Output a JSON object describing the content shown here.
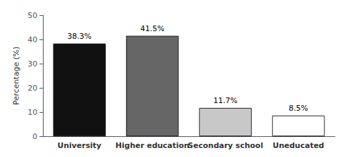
{
  "chart_data": {
    "type": "bar",
    "categories": [
      "University",
      "Higher education",
      "Secondary school",
      "Uneducated"
    ],
    "values": [
      38.3,
      41.5,
      11.7,
      8.5
    ],
    "value_labels": [
      "38.3%",
      "41.5%",
      "11.7%",
      "8.5%"
    ],
    "colors": [
      "#111111",
      "#666666",
      "#c8c8c8",
      "#ffffff"
    ],
    "ylabel": "Percentage (%)",
    "ylim": [
      0,
      50
    ],
    "yticks": [
      0,
      10,
      20,
      30,
      40,
      50
    ],
    "grid": false,
    "data_labels": true
  }
}
